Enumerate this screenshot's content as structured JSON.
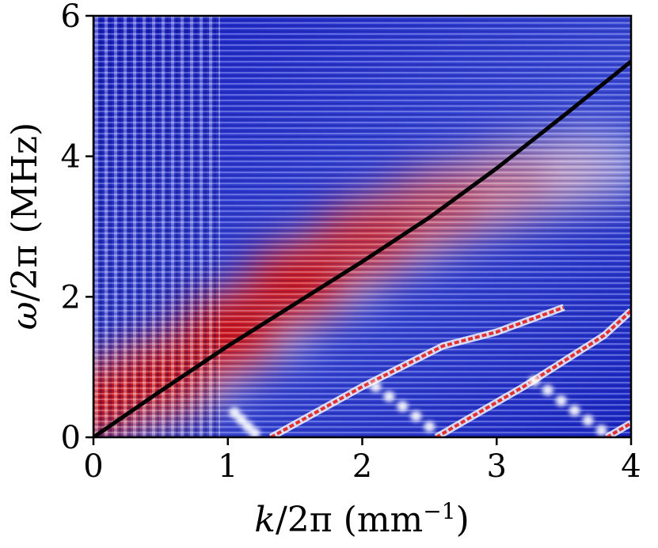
{
  "chart_data": {
    "type": "heatmap",
    "title": "",
    "xlabel_parts": {
      "var": "k",
      "sep": "/2π (mm",
      "exp": "−1",
      "close": ")"
    },
    "ylabel_parts": {
      "var": "ω",
      "sep": "/2π (MHz)"
    },
    "xlim": [
      0,
      4
    ],
    "ylim": [
      0,
      6
    ],
    "x_ticks": [
      "0",
      "1",
      "2",
      "3",
      "4"
    ],
    "y_ticks": [
      "0",
      "2",
      "4",
      "6"
    ],
    "colormap": {
      "low": "#0a14c8",
      "mid": "#ffffff",
      "high": "#d40000"
    },
    "grid": false,
    "legend": "none",
    "dispersion_line": {
      "color": "#000000",
      "x": [
        0.0,
        0.5,
        1.0,
        1.5,
        2.0,
        2.5,
        3.0,
        3.5,
        4.0
      ],
      "y": [
        0.0,
        0.66,
        1.3,
        1.9,
        2.5,
        3.13,
        3.83,
        4.58,
        5.35
      ]
    },
    "red_band": {
      "x": [
        0.0,
        0.5,
        1.0,
        1.5,
        2.0,
        2.5,
        3.0,
        3.5
      ],
      "y": [
        0.5,
        0.85,
        1.5,
        2.2,
        2.8,
        3.25,
        3.55,
        3.75
      ],
      "intensity": [
        0.95,
        0.95,
        0.95,
        0.9,
        0.75,
        0.55,
        0.35,
        0.15
      ]
    },
    "diagonal_stripes": [
      {
        "x": [
          1.32,
          2.0,
          2.6,
          3.0,
          3.5
        ],
        "y": [
          0.0,
          0.72,
          1.3,
          1.5,
          1.85
        ]
      },
      {
        "x": [
          2.55,
          3.2,
          3.8,
          4.0
        ],
        "y": [
          0.0,
          0.72,
          1.45,
          1.8
        ]
      },
      {
        "x": [
          3.82,
          4.0
        ],
        "y": [
          0.0,
          0.2
        ]
      }
    ],
    "dot_chains": [
      {
        "x": [
          1.05,
          1.1,
          1.15,
          1.2
        ],
        "y": [
          0.35,
          0.25,
          0.15,
          0.06
        ]
      },
      {
        "x": [
          2.1,
          2.2,
          2.3,
          2.4,
          2.5
        ],
        "y": [
          0.72,
          0.58,
          0.44,
          0.3,
          0.15
        ]
      },
      {
        "x": [
          3.28,
          3.38,
          3.48,
          3.58,
          3.68,
          3.78
        ],
        "y": [
          0.8,
          0.67,
          0.52,
          0.38,
          0.24,
          0.1
        ]
      }
    ]
  }
}
